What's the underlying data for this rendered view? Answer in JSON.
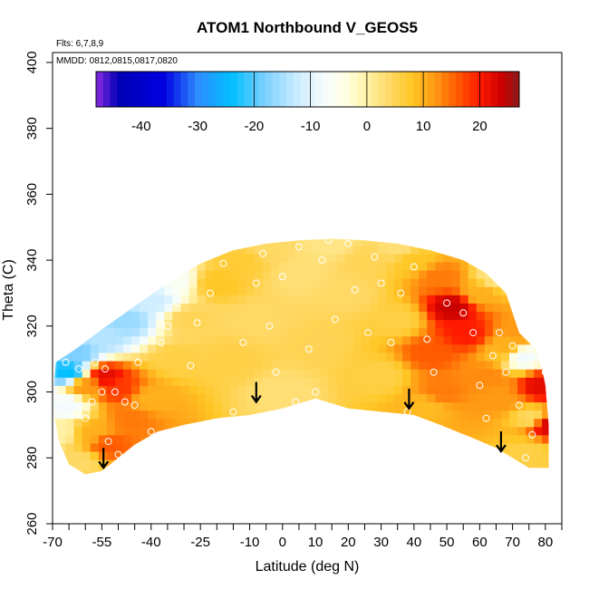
{
  "chart_data": {
    "type": "heatmap",
    "title": "ATOM1 Northbound V_GEOS5",
    "annotations": {
      "flights": "Flts: 6,7,8,9",
      "dates": "MMDD: 0812,0815,0817,0820"
    },
    "xlabel": "Latitude (deg N)",
    "ylabel": "Theta (C)",
    "xlim": [
      -70,
      85
    ],
    "ylim": [
      260,
      403
    ],
    "x_ticks": [
      -70,
      -55,
      -40,
      -25,
      -10,
      0,
      10,
      20,
      30,
      40,
      50,
      60,
      70,
      80
    ],
    "x_minor_ticks": [
      -65,
      -60,
      -50,
      -45,
      -35,
      -30,
      -20,
      -15,
      -5,
      5,
      15,
      25,
      35,
      45,
      55,
      65,
      75,
      85
    ],
    "y_ticks": [
      260,
      280,
      300,
      320,
      340,
      360,
      380,
      400
    ],
    "colorbar": {
      "range": [
        -48,
        27
      ],
      "ticks": [
        -40,
        -30,
        -20,
        -10,
        0,
        10,
        20
      ],
      "segment_bounds": [
        -20,
        -10,
        0,
        10,
        20
      ],
      "stops": [
        {
          "v": -48,
          "color": "#8a2be2"
        },
        {
          "v": -44,
          "color": "#0000b4"
        },
        {
          "v": -36,
          "color": "#0000e0"
        },
        {
          "v": -30,
          "color": "#2f8cff"
        },
        {
          "v": -24,
          "color": "#00bfff"
        },
        {
          "v": -18,
          "color": "#7fd0ff"
        },
        {
          "v": -12,
          "color": "#cfeeff"
        },
        {
          "v": -8,
          "color": "#f3fbff"
        },
        {
          "v": -4,
          "color": "#ffffe6"
        },
        {
          "v": 0,
          "color": "#fff2a6"
        },
        {
          "v": 4,
          "color": "#ffd966"
        },
        {
          "v": 8,
          "color": "#ffc726"
        },
        {
          "v": 12,
          "color": "#ff9a14"
        },
        {
          "v": 16,
          "color": "#ff5a00"
        },
        {
          "v": 20,
          "color": "#ff1a00"
        },
        {
          "v": 24,
          "color": "#c80000"
        },
        {
          "v": 27,
          "color": "#8b1a1a"
        }
      ]
    },
    "domain_boundary": {
      "top": [
        [
          -69,
          309
        ],
        [
          -63,
          313
        ],
        [
          -55,
          319
        ],
        [
          -45,
          326
        ],
        [
          -35,
          333
        ],
        [
          -25,
          339
        ],
        [
          -15,
          343
        ],
        [
          -5,
          345
        ],
        [
          5,
          346
        ],
        [
          15,
          346.5
        ],
        [
          25,
          346
        ],
        [
          35,
          345
        ],
        [
          45,
          343
        ],
        [
          55,
          340
        ],
        [
          62,
          336
        ],
        [
          68,
          330
        ],
        [
          72,
          318
        ],
        [
          77,
          313
        ],
        [
          79,
          307
        ],
        [
          80,
          302
        ],
        [
          81,
          290
        ]
      ],
      "bottom": [
        [
          81,
          277
        ],
        [
          75,
          277
        ],
        [
          70,
          280
        ],
        [
          65,
          283
        ],
        [
          58,
          286
        ],
        [
          48,
          290
        ],
        [
          40,
          293
        ],
        [
          30,
          294
        ],
        [
          20,
          295
        ],
        [
          10,
          298
        ],
        [
          0,
          295
        ],
        [
          -10,
          293
        ],
        [
          -20,
          292
        ],
        [
          -30,
          290
        ],
        [
          -38,
          288
        ],
        [
          -45,
          284
        ],
        [
          -50,
          280
        ],
        [
          -55,
          276
        ],
        [
          -60,
          275
        ],
        [
          -65,
          278
        ],
        [
          -68,
          285
        ],
        [
          -70,
          295
        ]
      ]
    },
    "field": [
      {
        "lat": -65,
        "theta": 306,
        "v": -24
      },
      {
        "lat": -62,
        "theta": 312,
        "v": -18
      },
      {
        "lat": -55,
        "theta": 316,
        "v": -14
      },
      {
        "lat": -48,
        "theta": 322,
        "v": -16
      },
      {
        "lat": -40,
        "theta": 328,
        "v": -12
      },
      {
        "lat": -33,
        "theta": 334,
        "v": -6
      },
      {
        "lat": -66,
        "theta": 296,
        "v": -8
      },
      {
        "lat": -60,
        "theta": 302,
        "v": 12
      },
      {
        "lat": -54,
        "theta": 305,
        "v": 22
      },
      {
        "lat": -50,
        "theta": 301,
        "v": 18
      },
      {
        "lat": -58,
        "theta": 288,
        "v": 10
      },
      {
        "lat": -53,
        "theta": 284,
        "v": 16
      },
      {
        "lat": -46,
        "theta": 292,
        "v": 14
      },
      {
        "lat": -40,
        "theta": 298,
        "v": 10
      },
      {
        "lat": -32,
        "theta": 310,
        "v": 6
      },
      {
        "lat": -28,
        "theta": 322,
        "v": 5
      },
      {
        "lat": -20,
        "theta": 333,
        "v": 8
      },
      {
        "lat": -12,
        "theta": 340,
        "v": 7
      },
      {
        "lat": -15,
        "theta": 310,
        "v": 6
      },
      {
        "lat": -8,
        "theta": 322,
        "v": 4
      },
      {
        "lat": 0,
        "theta": 300,
        "v": 3
      },
      {
        "lat": 5,
        "theta": 336,
        "v": 3
      },
      {
        "lat": 10,
        "theta": 315,
        "v": 5
      },
      {
        "lat": 20,
        "theta": 330,
        "v": 4
      },
      {
        "lat": 25,
        "theta": 340,
        "v": 5
      },
      {
        "lat": 30,
        "theta": 305,
        "v": 6
      },
      {
        "lat": 35,
        "theta": 322,
        "v": 6
      },
      {
        "lat": 45,
        "theta": 312,
        "v": 16
      },
      {
        "lat": 48,
        "theta": 300,
        "v": 14
      },
      {
        "lat": 52,
        "theta": 326,
        "v": 24
      },
      {
        "lat": 56,
        "theta": 318,
        "v": 20
      },
      {
        "lat": 48,
        "theta": 335,
        "v": 14
      },
      {
        "lat": 60,
        "theta": 330,
        "v": 10
      },
      {
        "lat": 62,
        "theta": 305,
        "v": 13
      },
      {
        "lat": 66,
        "theta": 298,
        "v": 12
      },
      {
        "lat": 68,
        "theta": 313,
        "v": 10
      },
      {
        "lat": 72,
        "theta": 318,
        "v": 12
      },
      {
        "lat": 73,
        "theta": 311,
        "v": -8
      },
      {
        "lat": 76,
        "theta": 292,
        "v": 4
      },
      {
        "lat": 79,
        "theta": 302,
        "v": 22
      },
      {
        "lat": 80,
        "theta": 290,
        "v": 23
      },
      {
        "lat": 65,
        "theta": 335,
        "v": 2
      },
      {
        "lat": 40,
        "theta": 340,
        "v": 8
      },
      {
        "lat": -5,
        "theta": 344,
        "v": 4
      },
      {
        "lat": 15,
        "theta": 345,
        "v": 2
      },
      {
        "lat": 35,
        "theta": 344,
        "v": 3
      },
      {
        "lat": 44,
        "theta": 296,
        "v": 9
      },
      {
        "lat": 75,
        "theta": 282,
        "v": 6
      },
      {
        "lat": -68,
        "theta": 288,
        "v": 0
      },
      {
        "lat": -62,
        "theta": 279,
        "v": 4
      }
    ],
    "sample_points": [
      [
        -68,
        298
      ],
      [
        -66,
        309
      ],
      [
        -62,
        307
      ],
      [
        -60,
        292
      ],
      [
        -58,
        297
      ],
      [
        -55,
        300
      ],
      [
        -53,
        285
      ],
      [
        -50,
        281
      ],
      [
        -48,
        297
      ],
      [
        -54,
        307
      ],
      [
        -51,
        300
      ],
      [
        -44,
        309
      ],
      [
        -40,
        288
      ],
      [
        -37,
        315
      ],
      [
        -35,
        320
      ],
      [
        -32,
        327
      ],
      [
        -28,
        308
      ],
      [
        -26,
        321
      ],
      [
        -22,
        330
      ],
      [
        -18,
        339
      ],
      [
        -15,
        294
      ],
      [
        -12,
        315
      ],
      [
        -8,
        333
      ],
      [
        -6,
        342
      ],
      [
        -4,
        320
      ],
      [
        -2,
        306
      ],
      [
        0,
        335
      ],
      [
        5,
        344
      ],
      [
        4,
        297
      ],
      [
        10,
        300
      ],
      [
        12,
        340
      ],
      [
        14,
        346
      ],
      [
        8,
        313
      ],
      [
        16,
        322
      ],
      [
        20,
        345
      ],
      [
        22,
        331
      ],
      [
        26,
        318
      ],
      [
        28,
        341
      ],
      [
        30,
        333
      ],
      [
        33,
        315
      ],
      [
        36,
        330
      ],
      [
        38,
        294
      ],
      [
        40,
        338
      ],
      [
        44,
        316
      ],
      [
        46,
        306
      ],
      [
        50,
        327
      ],
      [
        55,
        324
      ],
      [
        58,
        318
      ],
      [
        60,
        302
      ],
      [
        62,
        292
      ],
      [
        64,
        311
      ],
      [
        66,
        318
      ],
      [
        68,
        306
      ],
      [
        70,
        314
      ],
      [
        72,
        296
      ],
      [
        74,
        280
      ],
      [
        76,
        287
      ],
      [
        78,
        308
      ],
      [
        80,
        306
      ],
      [
        -45,
        296
      ],
      [
        -57,
        309
      ]
    ],
    "arrows": [
      {
        "lat": -54.5,
        "theta": 280
      },
      {
        "lat": -8,
        "theta": 300
      },
      {
        "lat": 38.5,
        "theta": 298
      },
      {
        "lat": 66.5,
        "theta": 285
      }
    ]
  }
}
